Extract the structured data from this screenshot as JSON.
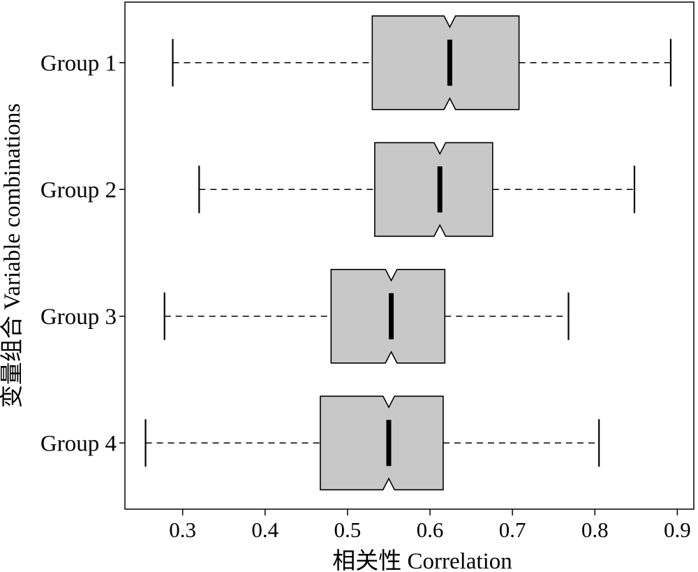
{
  "chart_data": {
    "type": "boxplot",
    "orientation": "horizontal",
    "notched": true,
    "title": "",
    "xlabel": "相关性 Correlation",
    "ylabel": "变量组合 Variable combinations",
    "xlim": [
      0.23,
      0.92
    ],
    "xticks": [
      "0.3",
      "0.4",
      "0.5",
      "0.6",
      "0.7",
      "0.8",
      "0.9"
    ],
    "categories": [
      "Group 1",
      "Group 2",
      "Group 3",
      "Group 4"
    ],
    "series": [
      {
        "category": "Group 1",
        "whisker_low": 0.288,
        "q1": 0.53,
        "median": 0.624,
        "q3": 0.708,
        "whisker_high": 0.892,
        "notch_low": 0.617,
        "notch_high": 0.631
      },
      {
        "category": "Group 2",
        "whisker_low": 0.32,
        "q1": 0.533,
        "median": 0.612,
        "q3": 0.676,
        "whisker_high": 0.848,
        "notch_low": 0.605,
        "notch_high": 0.619
      },
      {
        "category": "Group 3",
        "whisker_low": 0.278,
        "q1": 0.48,
        "median": 0.553,
        "q3": 0.618,
        "whisker_high": 0.768,
        "notch_low": 0.546,
        "notch_high": 0.56
      },
      {
        "category": "Group 4",
        "whisker_low": 0.255,
        "q1": 0.467,
        "median": 0.55,
        "q3": 0.616,
        "whisker_high": 0.805,
        "notch_low": 0.543,
        "notch_high": 0.557
      }
    ],
    "colors": {
      "box_fill": "#c8c8c8",
      "stroke": "#000000"
    },
    "grid": false
  }
}
